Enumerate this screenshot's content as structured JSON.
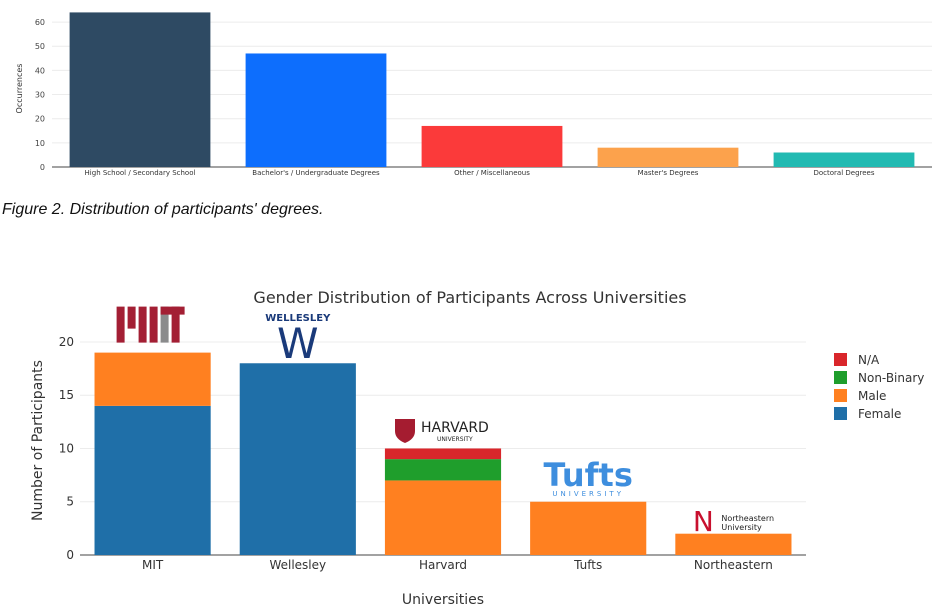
{
  "chart_data": [
    {
      "type": "bar",
      "title": "",
      "xlabel": "",
      "ylabel": "Occurrences",
      "ylim": [
        0,
        65
      ],
      "yticks": [
        0,
        10,
        20,
        30,
        40,
        50,
        60
      ],
      "grid": true,
      "categories": [
        "High School / Secondary School",
        "Bachelor's / Undergraduate Degrees",
        "Other / Miscellaneous",
        "Master's Degrees",
        "Doctoral Degrees"
      ],
      "values": [
        64,
        47,
        17,
        8,
        6
      ],
      "colors": [
        "#2e4a63",
        "#0d6efd",
        "#fb3a3a",
        "#fca24c",
        "#22bab2"
      ]
    },
    {
      "type": "bar",
      "stacked": true,
      "title": "Gender Distribution of Participants Across Universities",
      "xlabel": "Universities",
      "ylabel": "Number of Participants",
      "ylim": [
        0,
        23
      ],
      "yticks": [
        0,
        5,
        10,
        15,
        20
      ],
      "grid": true,
      "legend_position": "top-right",
      "categories": [
        "MIT",
        "Wellesley",
        "Harvard",
        "Tufts",
        "Northeastern"
      ],
      "series": [
        {
          "name": "Female",
          "color": "#1f6fa8",
          "values": [
            14,
            18,
            0,
            0,
            0
          ]
        },
        {
          "name": "Male",
          "color": "#ff8020",
          "values": [
            5,
            0,
            7,
            5,
            2
          ]
        },
        {
          "name": "Non-Binary",
          "color": "#1f9e2c",
          "values": [
            0,
            0,
            2,
            0,
            0
          ]
        },
        {
          "name": "N/A",
          "color": "#d9262b",
          "values": [
            0,
            0,
            1,
            0,
            0
          ]
        }
      ],
      "legend_order": [
        "N/A",
        "Non-Binary",
        "Male",
        "Female"
      ],
      "logos": {
        "mit": "MIT",
        "wellesley_top": "WELLESLEY",
        "wellesley_mark": "W",
        "harvard_name": "HARVARD",
        "harvard_sub": "UNIVERSITY",
        "tufts_name": "Tufts",
        "tufts_sub": "UNIVERSITY",
        "northeastern_mark": "N",
        "northeastern_line1": "Northeastern",
        "northeastern_line2": "University"
      }
    }
  ],
  "caption": "Figure 2. Distribution of participants' degrees."
}
